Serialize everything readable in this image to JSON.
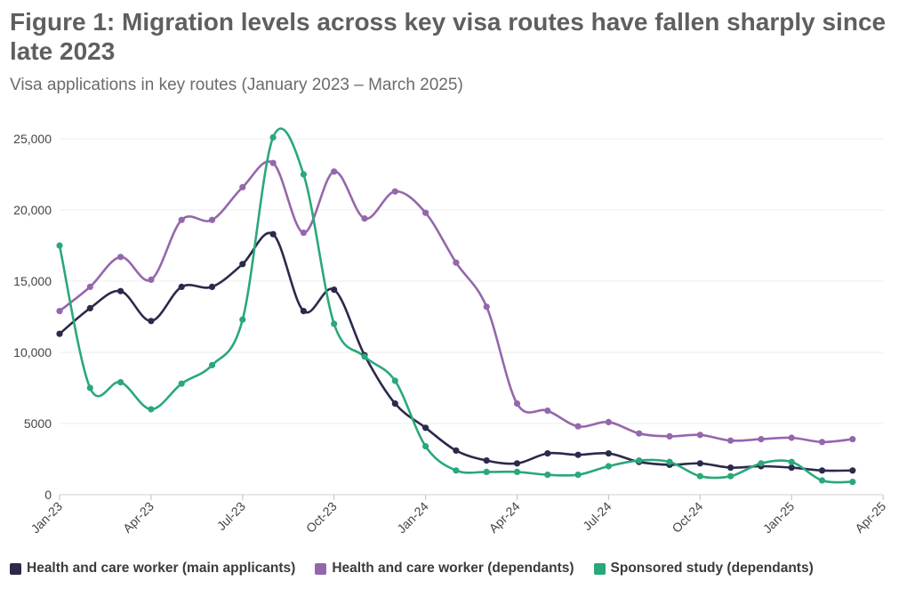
{
  "title": "Figure 1: Migration levels across key visa routes have fallen sharply since late 2023",
  "subtitle": "Visa applications in key routes (January 2023 – March 2025)",
  "chart_data": {
    "type": "line",
    "title": "Figure 1: Migration levels across key visa routes have fallen sharply since late 2023",
    "subtitle": "Visa applications in key routes (January 2023 – March 2025)",
    "xlabel": "",
    "ylabel": "",
    "x": [
      "Jan-23",
      "Feb-23",
      "Mar-23",
      "Apr-23",
      "May-23",
      "Jun-23",
      "Jul-23",
      "Aug-23",
      "Sep-23",
      "Oct-23",
      "Nov-23",
      "Dec-23",
      "Jan-24",
      "Feb-24",
      "Mar-24",
      "Apr-24",
      "May-24",
      "Jun-24",
      "Jul-24",
      "Aug-24",
      "Sep-24",
      "Oct-24",
      "Nov-24",
      "Dec-24",
      "Jan-25",
      "Feb-25",
      "Mar-25"
    ],
    "x_ticks": [
      "Jan-23",
      "Apr-23",
      "Jul-23",
      "Oct-23",
      "Jan-24",
      "Apr-24",
      "Jul-24",
      "Oct-24",
      "Jan-25",
      "Apr-25"
    ],
    "y_ticks": [
      "0",
      "5000",
      "10,000",
      "15,000",
      "20,000",
      "25,000"
    ],
    "ylim": [
      0,
      25000
    ],
    "grid": "horizontal",
    "legend_position": "bottom",
    "series": [
      {
        "name": "Health and care worker (main applicants)",
        "color": "#2b2a4c",
        "values": [
          11300,
          13100,
          14300,
          12200,
          14600,
          14600,
          16200,
          18300,
          12900,
          14400,
          9800,
          6400,
          4700,
          3100,
          2400,
          2200,
          2900,
          2800,
          2900,
          2300,
          2100,
          2200,
          1900,
          2000,
          1900,
          1700,
          1700
        ]
      },
      {
        "name": "Health and care worker (dependants)",
        "color": "#9467ad",
        "values": [
          12900,
          14600,
          16700,
          15100,
          19300,
          19300,
          21600,
          23300,
          18400,
          22700,
          19400,
          21300,
          19800,
          16300,
          13200,
          6400,
          5900,
          4800,
          5100,
          4300,
          4100,
          4200,
          3800,
          3900,
          4000,
          3700,
          3900
        ]
      },
      {
        "name": "Sponsored study (dependants)",
        "color": "#2aa87a",
        "values": [
          17500,
          7500,
          7900,
          6000,
          7800,
          9100,
          12300,
          25100,
          22500,
          12000,
          9700,
          8000,
          3400,
          1700,
          1600,
          1600,
          1400,
          1400,
          2000,
          2400,
          2300,
          1300,
          1300,
          2200,
          2300,
          1000,
          900
        ]
      }
    ]
  }
}
